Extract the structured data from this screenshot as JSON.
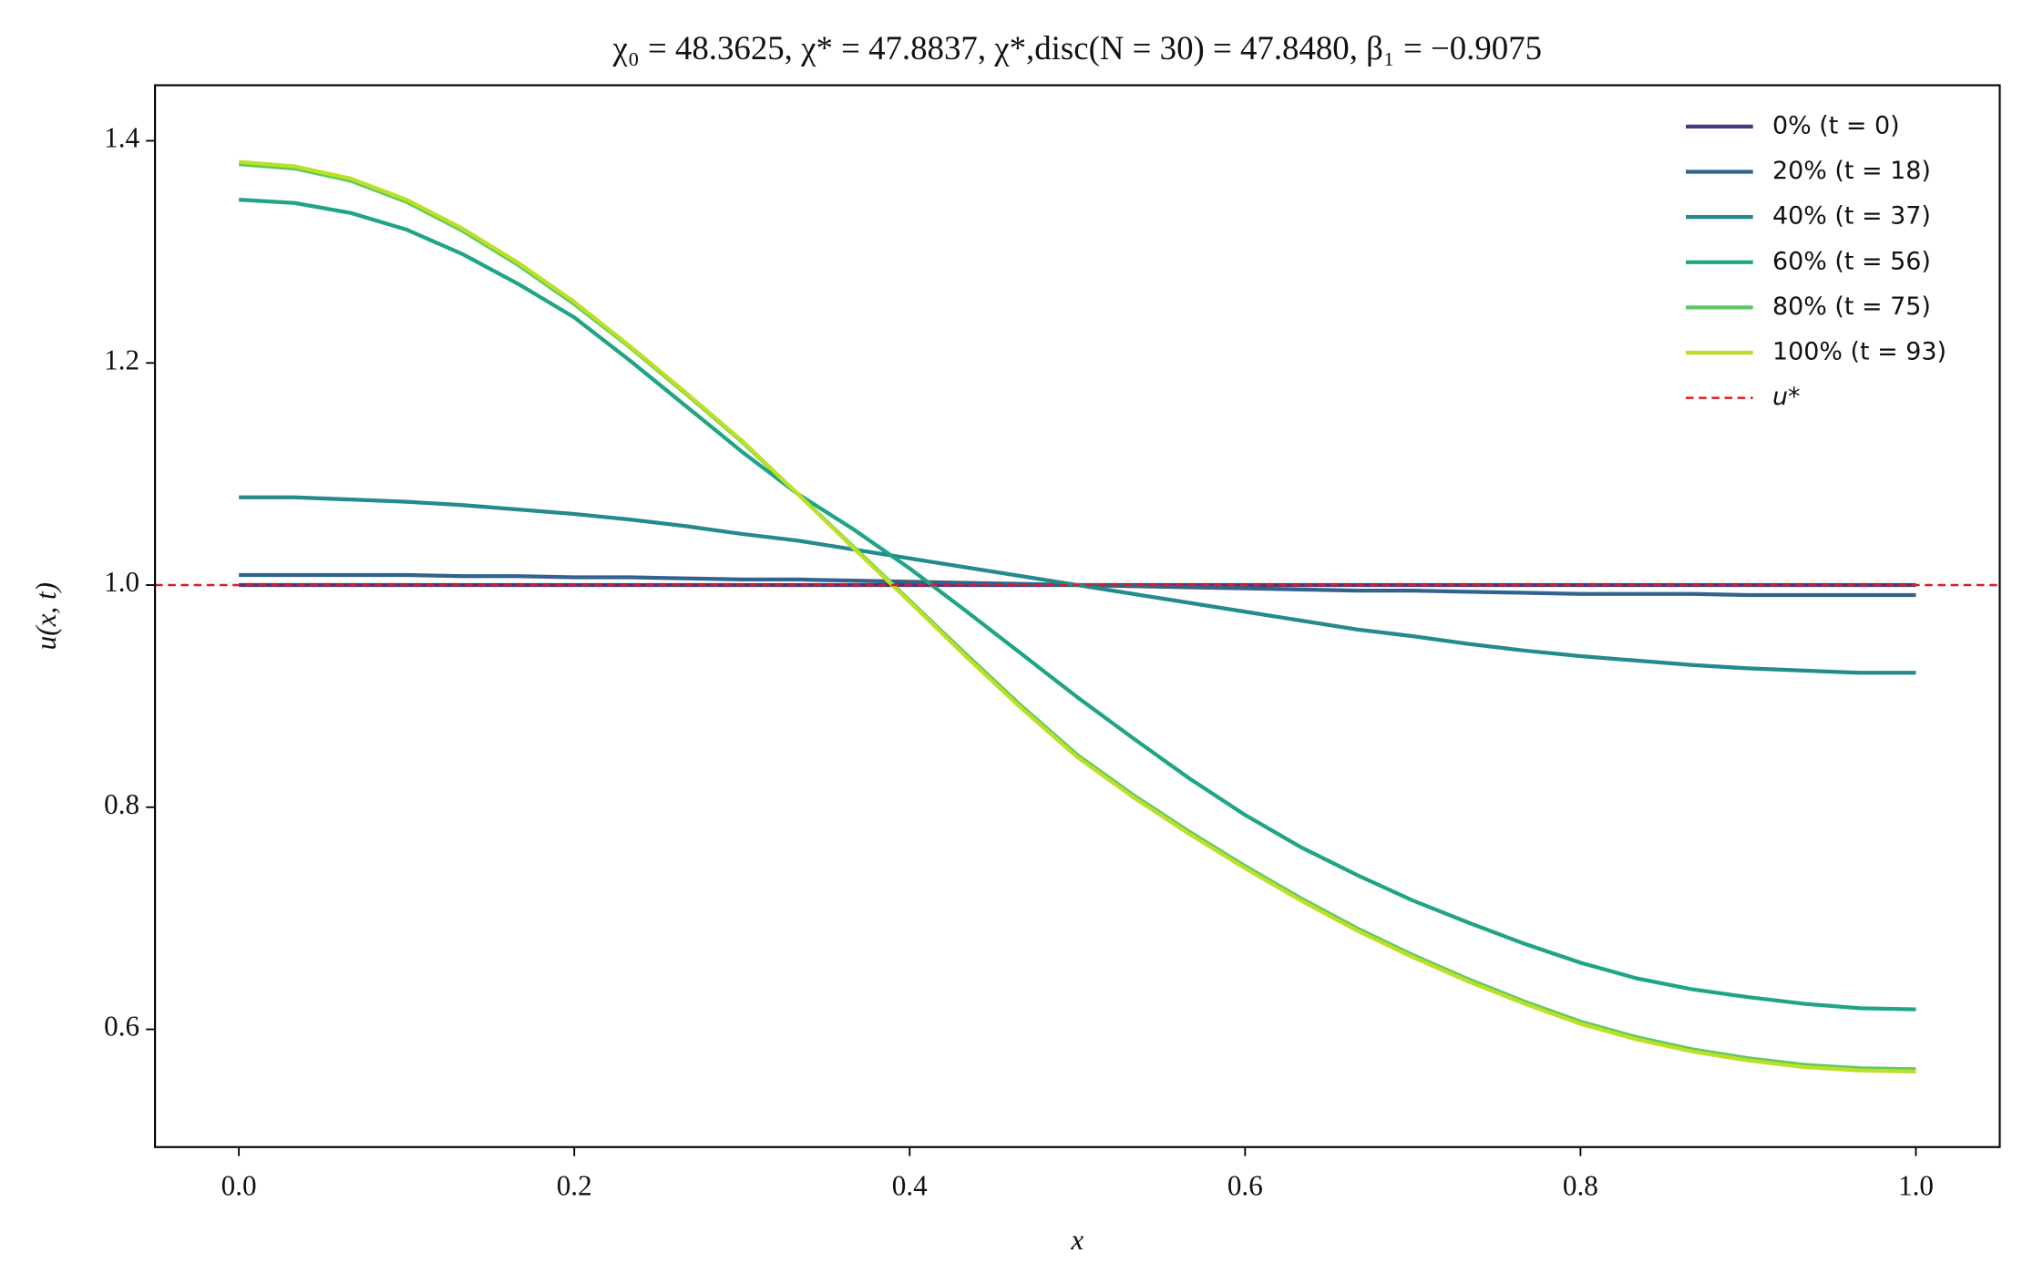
{
  "chart_data": {
    "type": "line",
    "title": "χ₀ = 48.3625,  χ* = 47.8837,  χ*,disc(N = 30) = 47.8480,  β₁ = −0.9075",
    "x_label": "x",
    "y_label": "u(x, t)",
    "x": [
      0,
      0.0333,
      0.0667,
      0.1,
      0.1333,
      0.1667,
      0.2,
      0.2333,
      0.2667,
      0.3,
      0.3333,
      0.3667,
      0.4,
      0.4333,
      0.4667,
      0.5,
      0.5333,
      0.5667,
      0.6,
      0.6333,
      0.6667,
      0.7,
      0.7333,
      0.7667,
      0.8,
      0.8333,
      0.8667,
      0.9,
      0.9333,
      0.9667,
      1
    ],
    "series": [
      {
        "name": "0% (t = 0)",
        "color": "#443983",
        "values": [
          1,
          1,
          1,
          1,
          1,
          1,
          1,
          1,
          1,
          1,
          1,
          1,
          1,
          1,
          1,
          1,
          1,
          1,
          1,
          1,
          1,
          1,
          1,
          1,
          1,
          1,
          1,
          1,
          1,
          1,
          1
        ]
      },
      {
        "name": "20% (t = 18)",
        "color": "#33638d",
        "values": [
          1.009,
          1.009,
          1.009,
          1.009,
          1.008,
          1.008,
          1.007,
          1.007,
          1.006,
          1.005,
          1.005,
          1.004,
          1.003,
          1.002,
          1.001,
          1.0,
          0.999,
          0.998,
          0.997,
          0.996,
          0.995,
          0.995,
          0.994,
          0.993,
          0.992,
          0.992,
          0.992,
          0.991,
          0.991,
          0.991,
          0.991
        ]
      },
      {
        "name": "40% (t = 37)",
        "color": "#238a8d",
        "values": [
          1.079,
          1.079,
          1.077,
          1.075,
          1.072,
          1.068,
          1.064,
          1.059,
          1.053,
          1.046,
          1.04,
          1.032,
          1.024,
          1.016,
          1.008,
          1.0,
          0.992,
          0.984,
          0.976,
          0.968,
          0.96,
          0.954,
          0.947,
          0.941,
          0.936,
          0.932,
          0.928,
          0.925,
          0.923,
          0.921,
          0.921
        ]
      },
      {
        "name": "60% (t = 56)",
        "color": "#20a486",
        "values": [
          1.347,
          1.344,
          1.335,
          1.32,
          1.298,
          1.271,
          1.241,
          1.202,
          1.161,
          1.12,
          1.082,
          1.05,
          1.015,
          0.977,
          0.938,
          0.899,
          0.862,
          0.826,
          0.793,
          0.764,
          0.739,
          0.716,
          0.696,
          0.677,
          0.66,
          0.646,
          0.636,
          0.629,
          0.623,
          0.619,
          0.618
        ]
      },
      {
        "name": "80% (t = 75)",
        "color": "#5ec962",
        "values": [
          1.379,
          1.375,
          1.364,
          1.345,
          1.319,
          1.288,
          1.253,
          1.214,
          1.172,
          1.129,
          1.082,
          1.034,
          0.986,
          0.938,
          0.891,
          0.847,
          0.811,
          0.778,
          0.747,
          0.718,
          0.691,
          0.667,
          0.645,
          0.625,
          0.607,
          0.593,
          0.582,
          0.574,
          0.568,
          0.565,
          0.564
        ]
      },
      {
        "name": "100% (t = 93)",
        "color": "#bddf26",
        "values": [
          1.381,
          1.377,
          1.366,
          1.347,
          1.321,
          1.29,
          1.255,
          1.215,
          1.173,
          1.13,
          1.082,
          1.033,
          0.985,
          0.936,
          0.889,
          0.845,
          0.809,
          0.776,
          0.745,
          0.716,
          0.689,
          0.665,
          0.643,
          0.623,
          0.605,
          0.591,
          0.58,
          0.572,
          0.566,
          0.563,
          0.562
        ]
      }
    ],
    "reference_line": {
      "name": "u*",
      "value": 1,
      "color": "#e31a1c"
    },
    "xlim": [
      -0.05,
      1.05
    ],
    "ylim": [
      0.494,
      1.45
    ],
    "xticks": [
      {
        "value": 0,
        "label": "0.0"
      },
      0.2,
      0.4,
      0.6,
      0.8,
      {
        "value": 1,
        "label": "1.0"
      }
    ],
    "yticks": [
      0.6,
      0.8,
      {
        "value": 1,
        "label": "1.0"
      },
      1.2,
      1.4
    ],
    "legend": "upper right"
  }
}
